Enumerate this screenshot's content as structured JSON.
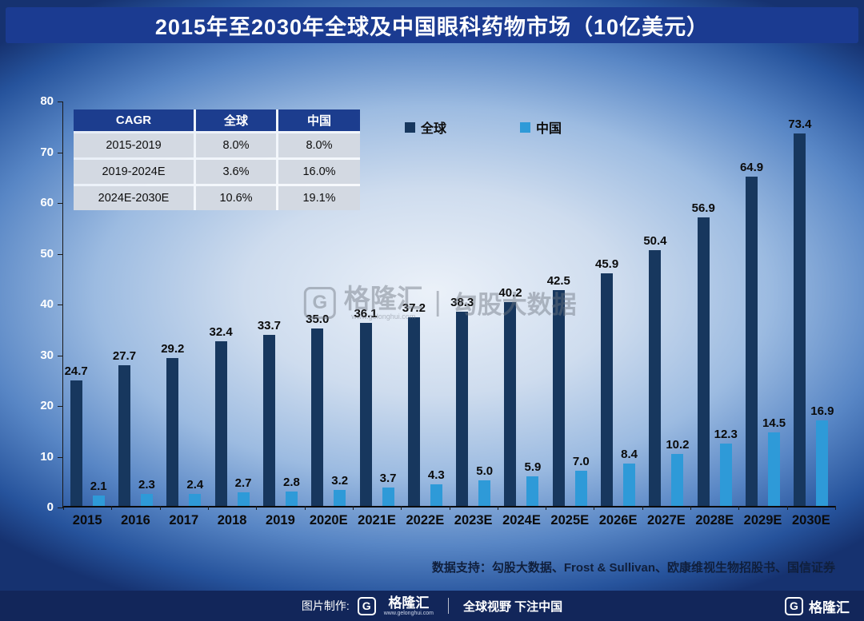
{
  "title": "2015年至2030年全球及中国眼科药物市场（10亿美元）",
  "chart_data": {
    "type": "bar",
    "title": "2015年至2030年全球及中国眼科药物市场（10亿美元）",
    "categories": [
      "2015",
      "2016",
      "2017",
      "2018",
      "2019",
      "2020E",
      "2021E",
      "2022E",
      "2023E",
      "2024E",
      "2025E",
      "2026E",
      "2027E",
      "2028E",
      "2029E",
      "2030E"
    ],
    "series": [
      {
        "name": "全球",
        "color": "#17375e",
        "values": [
          24.7,
          27.7,
          29.2,
          32.4,
          33.7,
          35.0,
          36.1,
          37.2,
          38.3,
          40.2,
          42.5,
          45.9,
          50.4,
          56.9,
          64.9,
          73.4
        ]
      },
      {
        "name": "中国",
        "color": "#2e9ad8",
        "values": [
          2.1,
          2.3,
          2.4,
          2.7,
          2.8,
          3.2,
          3.7,
          4.3,
          5.0,
          5.9,
          7.0,
          8.4,
          10.2,
          12.3,
          14.5,
          16.9
        ]
      }
    ],
    "xlabel": "",
    "ylabel": "",
    "ylim": [
      0,
      80
    ],
    "ytick_step": 10,
    "grid": false,
    "legend_position": "top"
  },
  "cagr_table": {
    "headers": [
      "CAGR",
      "全球",
      "中国"
    ],
    "rows": [
      [
        "2015-2019",
        "8.0%",
        "8.0%"
      ],
      [
        "2019-2024E",
        "3.6%",
        "16.0%"
      ],
      [
        "2024E-2030E",
        "10.6%",
        "19.1%"
      ]
    ]
  },
  "watermark": {
    "logo_letter": "G",
    "brand": "格隆汇",
    "url": "www.gelonghui.com",
    "divider": "|",
    "suffix": "勾股大数据"
  },
  "source": "数据支持：勾股大数据、Frost & Sullivan、欧康维视生物招股书、国信证券",
  "footer": {
    "made_by": "图片制作:",
    "logo_letter": "G",
    "brand": "格隆汇",
    "brand_sub": "www.gelonghui.com",
    "slogan": "全球视野 下注中国"
  },
  "colors": {
    "global_bar": "#17375e",
    "china_bar": "#2e9ad8",
    "title_bg": "#1b3b91",
    "footer_bg": "#12265a"
  }
}
